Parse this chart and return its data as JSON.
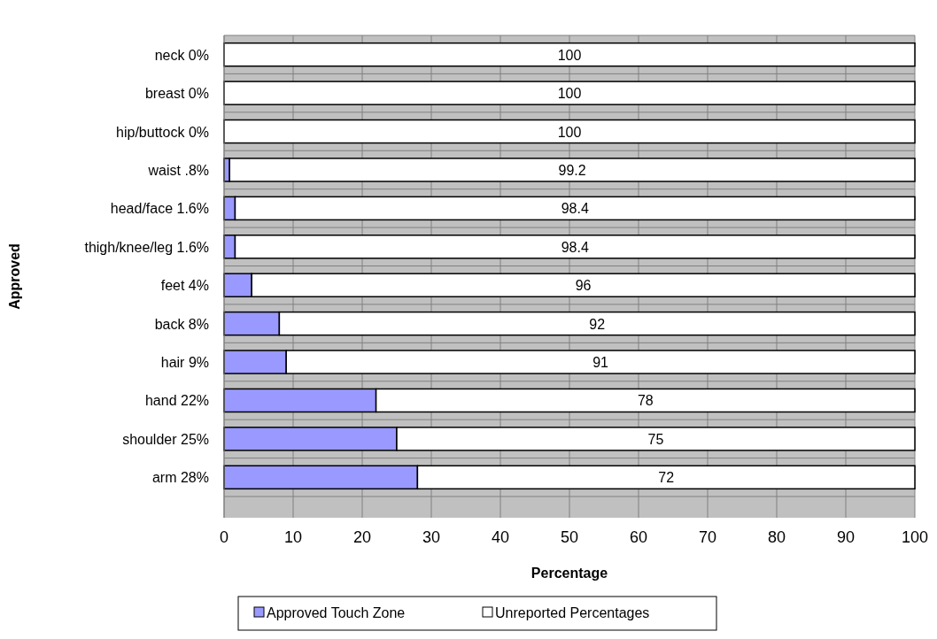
{
  "chart_data": {
    "type": "bar",
    "orientation": "horizontal",
    "stacked": true,
    "xlabel": "Percentage",
    "ylabel": "Approved",
    "categories": [
      "neck 0%",
      "breast 0%",
      "hip/buttock 0%",
      "waist .8%",
      "head/face 1.6%",
      "thigh/knee/leg 1.6%",
      "feet 4%",
      "back 8%",
      "hair 9%",
      "hand 22%",
      "shoulder 25%",
      "arm 28%"
    ],
    "series": [
      {
        "name": "Approved Touch Zone",
        "color": "#9999ff",
        "values": [
          0,
          0,
          0,
          0.8,
          1.6,
          1.6,
          4,
          8,
          9,
          22,
          25,
          28
        ]
      },
      {
        "name": "Unreported Percentages",
        "color": "#ffffff",
        "values": [
          100,
          100,
          100,
          99.2,
          98.4,
          98.4,
          96,
          92,
          91,
          78,
          75,
          72
        ],
        "value_labels": [
          "100",
          "100",
          "100",
          "99.2",
          "98.4",
          "98.4",
          "96",
          "92",
          "91",
          "78",
          "75",
          "72"
        ]
      }
    ],
    "xlim": [
      0,
      100
    ],
    "xticks": [
      0,
      10,
      20,
      30,
      40,
      50,
      60,
      70,
      80,
      90,
      100
    ],
    "grid": true,
    "legend": "bottom"
  }
}
